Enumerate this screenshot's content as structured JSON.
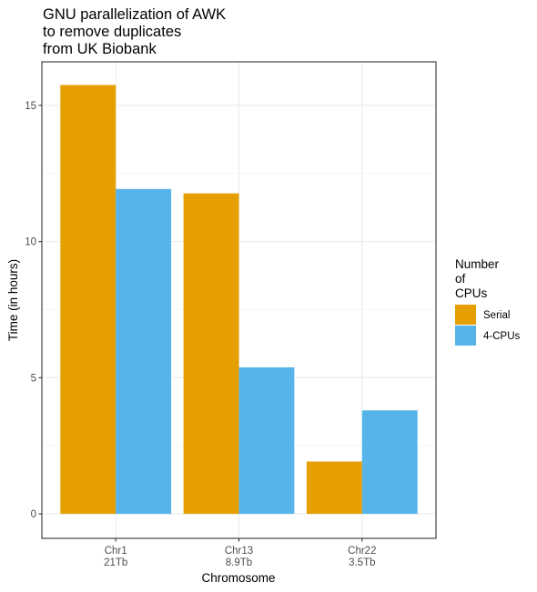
{
  "chart_data": {
    "type": "bar",
    "title_lines": [
      "GNU parallelization of AWK",
      "to remove duplicates",
      "from UK Biobank"
    ],
    "xlabel": "Chromosome",
    "ylabel": "Time (in hours)",
    "categories": [
      {
        "name": "Chr1",
        "size": "21Tb"
      },
      {
        "name": "Chr13",
        "size": "8.9Tb"
      },
      {
        "name": "Chr22",
        "size": "3.5Tb"
      }
    ],
    "series": [
      {
        "name": "Serial",
        "color": "#E69F00",
        "values": [
          15.75,
          11.77,
          1.92
        ]
      },
      {
        "name": "4-CPUs",
        "color": "#56B4E9",
        "values": [
          11.93,
          5.38,
          3.8
        ]
      }
    ],
    "ylim": [
      -0.9,
      16.6
    ],
    "yticks": [
      0,
      5,
      10,
      15
    ],
    "grid": true,
    "legend": {
      "title_lines": [
        "Number",
        "of",
        "CPUs"
      ],
      "position": "right"
    }
  }
}
